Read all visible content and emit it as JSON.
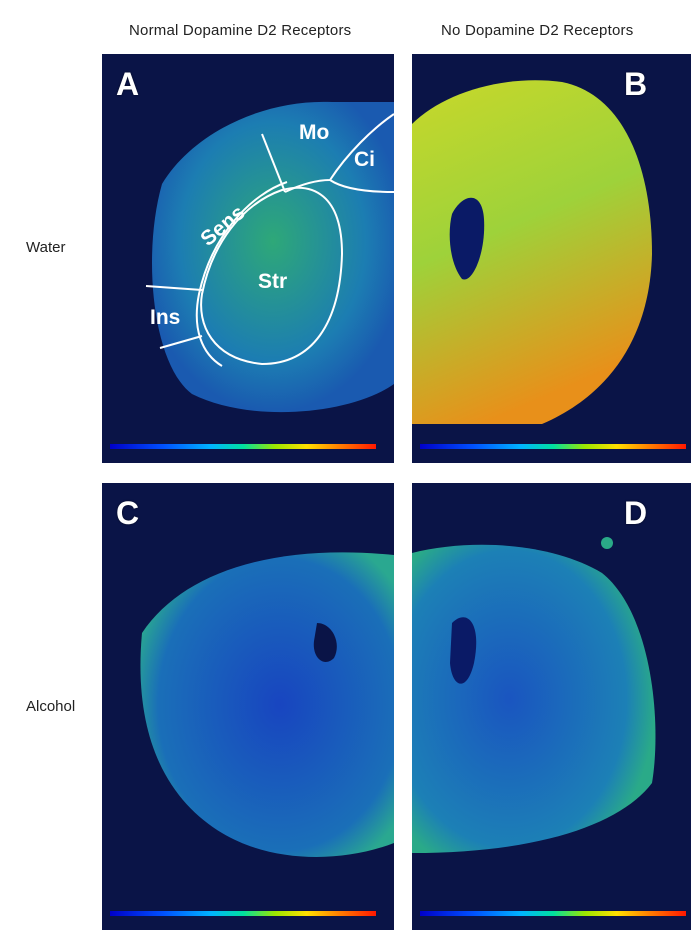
{
  "columns": [
    {
      "label": "Normal Dopamine D2 Receptors"
    },
    {
      "label": "No Dopamine D2 Receptors"
    }
  ],
  "rows": [
    {
      "label": "Water"
    },
    {
      "label": "Alcohol"
    }
  ],
  "panels": {
    "A": {
      "letter": "A"
    },
    "B": {
      "letter": "B"
    },
    "C": {
      "letter": "C"
    },
    "D": {
      "letter": "D"
    }
  },
  "regions": {
    "mo": "Mo",
    "ci": "Ci",
    "sens": "Sens",
    "str": "Str",
    "ins": "Ins"
  },
  "colors": {
    "background": "#0a1447",
    "outline": "#ffffff",
    "colormap": [
      "#0000c8",
      "#0050ff",
      "#00b4ff",
      "#00e0a0",
      "#9ae600",
      "#ffe000",
      "#ff8000",
      "#ff1800"
    ]
  }
}
